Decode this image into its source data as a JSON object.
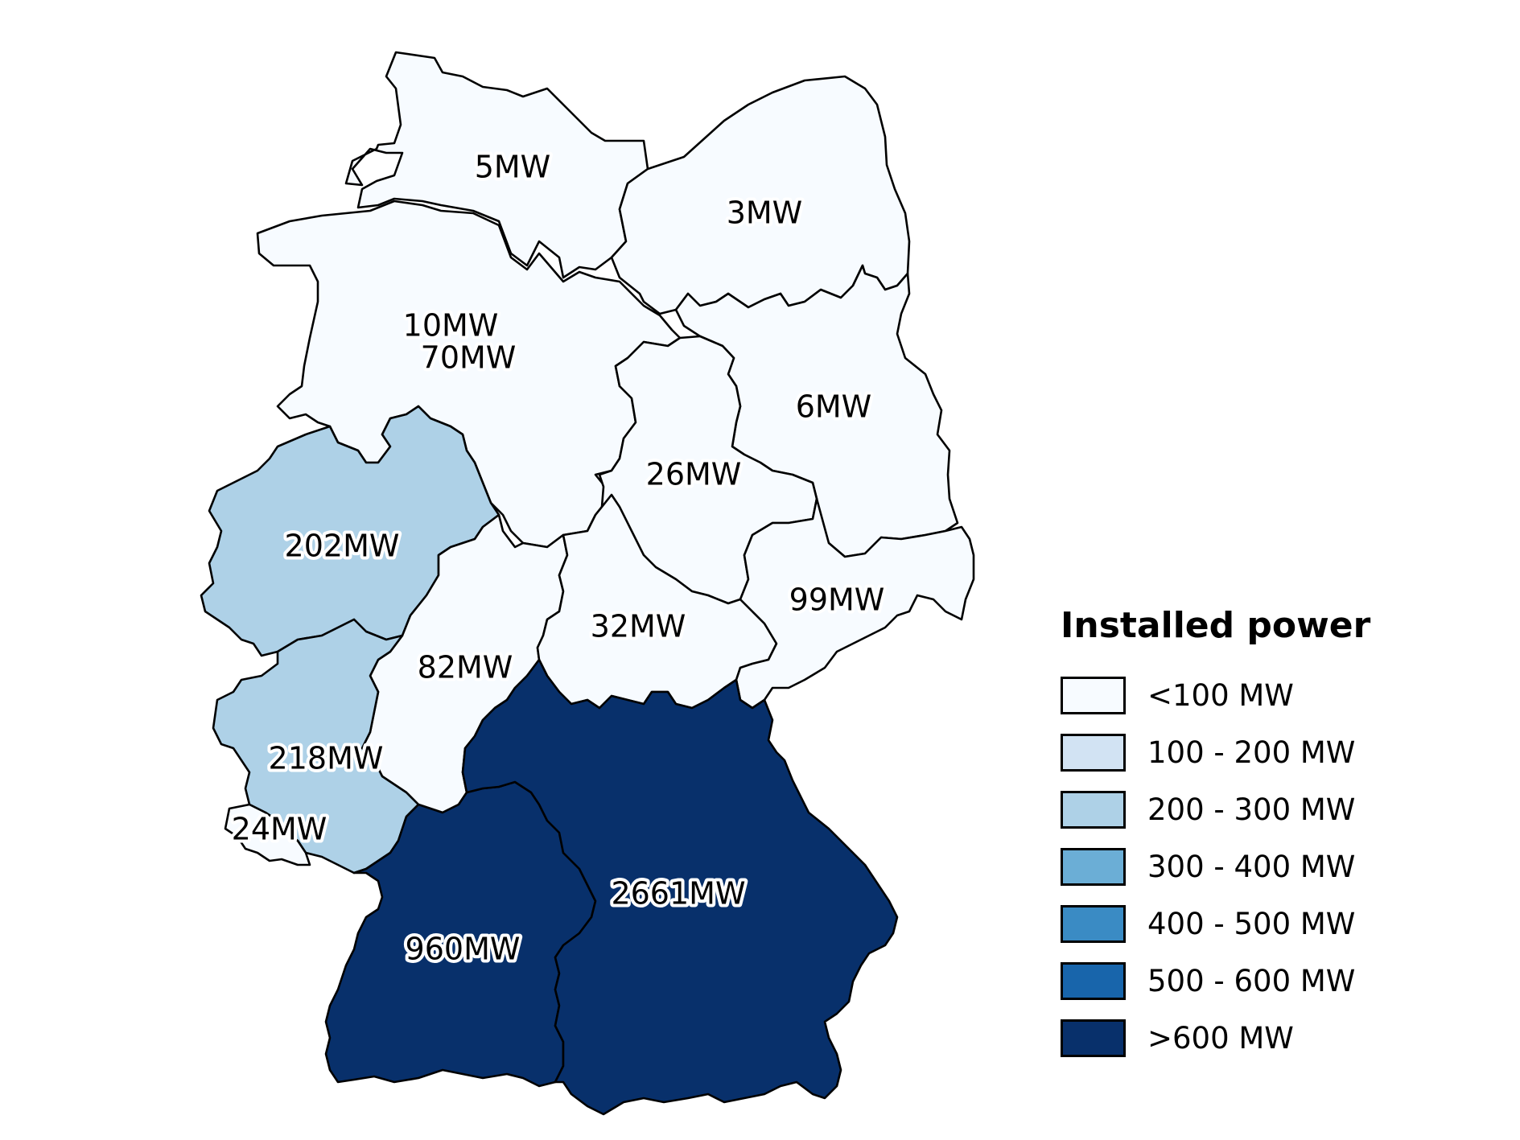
{
  "legend": {
    "title": "Installed power",
    "items": [
      {
        "label": "<100 MW",
        "color": "#f7fbff"
      },
      {
        "label": "100 - 200 MW",
        "color": "#d2e3f3"
      },
      {
        "label": "200 - 300 MW",
        "color": "#aed1e7"
      },
      {
        "label": "300 - 400 MW",
        "color": "#6baed6"
      },
      {
        "label": "400 - 500 MW",
        "color": "#3a8bc4"
      },
      {
        "label": "500 - 600 MW",
        "color": "#1865ab"
      },
      {
        "label": ">600 MW",
        "color": "#08306b"
      }
    ]
  },
  "regions": [
    {
      "label": "5MW",
      "value_mw": 5,
      "color": "#f7fbff"
    },
    {
      "label": "3MW",
      "value_mw": 3,
      "color": "#f7fbff"
    },
    {
      "label": "10MW",
      "value_mw": 10,
      "color": "#f7fbff"
    },
    {
      "label": "70MW",
      "value_mw": 70,
      "color": "#f7fbff"
    },
    {
      "label": "6MW",
      "value_mw": 6,
      "color": "#f7fbff"
    },
    {
      "label": "26MW",
      "value_mw": 26,
      "color": "#f7fbff"
    },
    {
      "label": "202MW",
      "value_mw": 202,
      "color": "#aed1e7"
    },
    {
      "label": "82MW",
      "value_mw": 82,
      "color": "#f7fbff"
    },
    {
      "label": "32MW",
      "value_mw": 32,
      "color": "#f7fbff"
    },
    {
      "label": "99MW",
      "value_mw": 99,
      "color": "#f7fbff"
    },
    {
      "label": "218MW",
      "value_mw": 218,
      "color": "#aed1e7"
    },
    {
      "label": "24MW",
      "value_mw": 24,
      "color": "#f7fbff"
    },
    {
      "label": "960MW",
      "value_mw": 960,
      "color": "#08306b"
    },
    {
      "label": "2661MW",
      "value_mw": 2661,
      "color": "#08306b"
    }
  ]
}
